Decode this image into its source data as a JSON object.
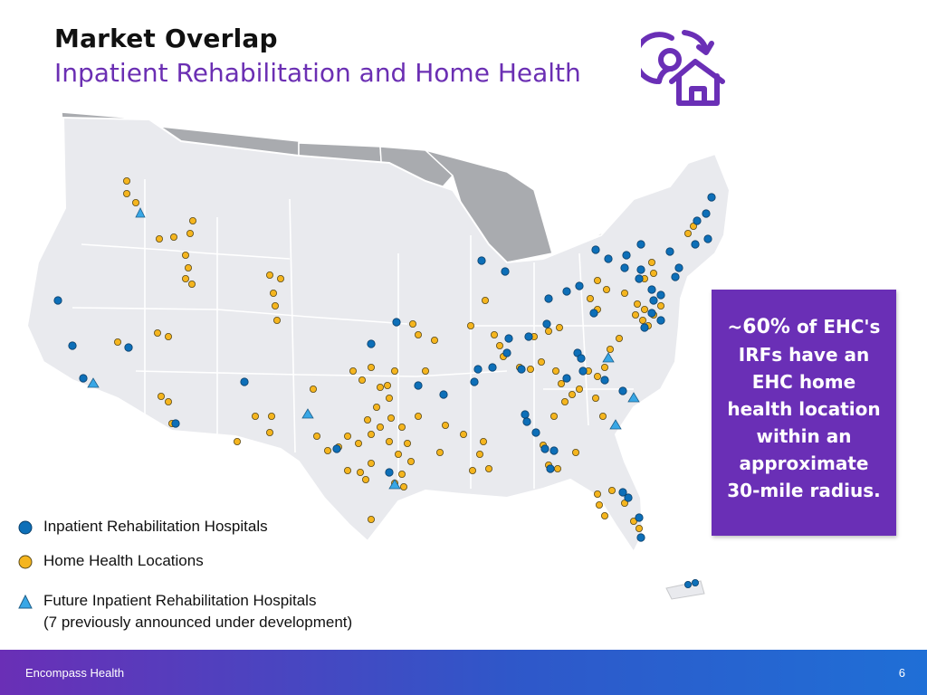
{
  "slide": {
    "title": "Market Overlap",
    "subtitle": "Inpatient Rehabilitation and Home Health"
  },
  "colors": {
    "accent_purple": "#6a2fb6",
    "irf_blue": "#0d6fb8",
    "home_health_gold": "#f5b51e",
    "future_triangle": "#38a7e6",
    "map_light": "#e9eaee",
    "map_dark": "#a9abaf"
  },
  "logo": {
    "icon": "person-house-refresh-icon"
  },
  "callout": {
    "prefix": "~",
    "percent": "60%",
    "text": "of EHC's IRFs have an EHC home health location within an approximate 30-mile radius."
  },
  "legend": [
    {
      "symbol": "blue-circle-icon",
      "label": "Inpatient Rehabilitation Hospitals"
    },
    {
      "symbol": "gold-circle-icon",
      "label": "Home Health Locations"
    },
    {
      "symbol": "blue-triangle-icon",
      "label": "Future Inpatient Rehabilitation Hospitals",
      "note": "(7 previously announced under development)"
    }
  ],
  "footer": {
    "company": "Encompass Health",
    "page_number": "6"
  }
}
